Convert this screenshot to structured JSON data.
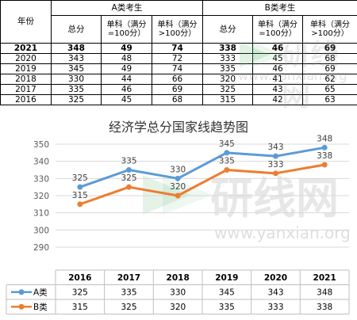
{
  "table": {
    "year_header": "年份",
    "group_a": "A类考生",
    "group_b": "B类考生",
    "col_total": "总分",
    "col_single_100": "单科（满分=100分）",
    "col_single_gt100": "单科（满分>100分）",
    "rows": [
      {
        "year": "2021",
        "a_total": "348",
        "a_s100": "49",
        "a_sgt100": "74",
        "b_total": "338",
        "b_s100": "46",
        "b_sgt100": "69",
        "bold": true
      },
      {
        "year": "2020",
        "a_total": "343",
        "a_s100": "48",
        "a_sgt100": "72",
        "b_total": "333",
        "b_s100": "45",
        "b_sgt100": "68"
      },
      {
        "year": "2019",
        "a_total": "345",
        "a_s100": "49",
        "a_sgt100": "74",
        "b_total": "335",
        "b_s100": "46",
        "b_sgt100": "69"
      },
      {
        "year": "2018",
        "a_total": "330",
        "a_s100": "44",
        "a_sgt100": "66",
        "b_total": "320",
        "b_s100": "41",
        "b_sgt100": "62"
      },
      {
        "year": "2017",
        "a_total": "335",
        "a_s100": "46",
        "a_sgt100": "69",
        "b_total": "325",
        "b_s100": "43",
        "b_sgt100": "65"
      },
      {
        "year": "2016",
        "a_total": "325",
        "a_s100": "45",
        "a_sgt100": "68",
        "b_total": "315",
        "b_s100": "42",
        "b_sgt100": "63"
      }
    ]
  },
  "watermark": {
    "text": "研线网",
    "url": "www.yanxian.org"
  },
  "chart_data": {
    "type": "line",
    "title": "经济学总分国家线趋势图",
    "categories": [
      "2016",
      "2017",
      "2018",
      "2019",
      "2020",
      "2021"
    ],
    "series": [
      {
        "name": "A类",
        "values": [
          325,
          335,
          330,
          345,
          343,
          348
        ],
        "color": "#5b9bd5"
      },
      {
        "name": "B类",
        "values": [
          315,
          325,
          320,
          335,
          333,
          338
        ],
        "color": "#ed7d31"
      }
    ],
    "yticks": [
      290,
      300,
      310,
      320,
      330,
      340,
      350
    ],
    "ylim": [
      290,
      350
    ],
    "grid": true,
    "legend": "data-table-bottom"
  }
}
